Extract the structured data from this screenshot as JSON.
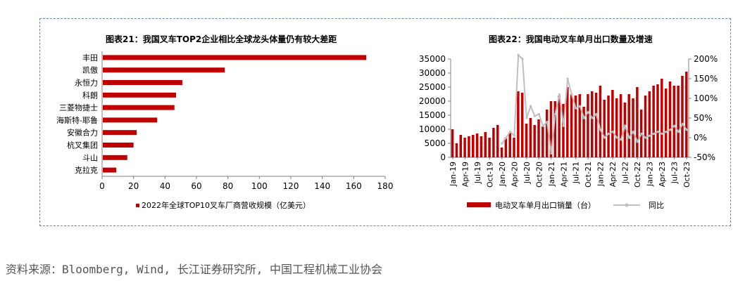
{
  "source_note": "资料来源：Bloomberg, Wind, 长江证券研究所, 中国工程机械工业协会",
  "colors": {
    "bar": "#c00000",
    "line": "#bfbfbf",
    "border": "#6a86b4"
  },
  "chart_data": [
    {
      "type": "bar",
      "orientation": "horizontal",
      "title": "图表21：我国叉车TOP2企业相比全球龙头体量仍有较大差距",
      "categories": [
        "丰田",
        "凯傲",
        "永恒力",
        "科朗",
        "三菱物捷士",
        "海斯特-耶鲁",
        "安徽合力",
        "杭叉集团",
        "斗山",
        "克拉克"
      ],
      "series": [
        {
          "name": "2022年全球TOP10叉车厂商营收规模（亿美元）",
          "values": [
            168,
            78,
            51,
            47,
            46,
            35,
            22,
            20,
            16,
            9
          ]
        }
      ],
      "xticks": [
        "0",
        "20",
        "40",
        "60",
        "80",
        "100",
        "120",
        "140",
        "160",
        "180"
      ],
      "xlim": [
        0,
        180
      ],
      "legend": "bottom"
    },
    {
      "type": "bar+line",
      "title": "图表22：我国电动叉车单月出口数量及增速",
      "xticks": [
        "Jan-19",
        "Apr-19",
        "Jul-19",
        "Oct-19",
        "Jan-20",
        "Apr-20",
        "Jul-20",
        "Oct-20",
        "Jan-21",
        "Apr-21",
        "Jul-21",
        "Oct-21",
        "Jan-22",
        "Apr-22",
        "Jul-22",
        "Oct-22",
        "Jan-23",
        "Apr-23",
        "Jul-23",
        "Oct-23"
      ],
      "y_left_ticks": [
        "0",
        "5000",
        "10000",
        "15000",
        "20000",
        "25000",
        "30000",
        "35000"
      ],
      "y_left_lim": [
        0,
        35000
      ],
      "y_right_ticks": [
        "-50%",
        "0%",
        "50%",
        "100%",
        "150%",
        "200%"
      ],
      "y_right_lim": [
        -50,
        200
      ],
      "series": [
        {
          "name": "电动叉车单月出口销量（台）",
          "kind": "bar",
          "axis": "left",
          "values": [
            10000,
            5000,
            8000,
            7000,
            7500,
            8000,
            8500,
            7500,
            9000,
            7000,
            10500,
            11500,
            3500,
            7000,
            9000,
            7000,
            23500,
            23000,
            12000,
            14000,
            11500,
            13500,
            11000,
            17000,
            20000,
            20000,
            22000,
            19000,
            25000,
            22500,
            22000,
            22500,
            18000,
            22500,
            23500,
            23000,
            25500,
            20500,
            22000,
            24000,
            21000,
            22500,
            19500,
            22500,
            21000,
            25000,
            17000,
            22000,
            23500,
            25500,
            26000,
            28000,
            24500,
            27000,
            25500,
            25500,
            29000,
            30500
          ]
        },
        {
          "name": "同比",
          "kind": "line",
          "axis": "right",
          "values": [
            null,
            null,
            null,
            null,
            null,
            null,
            null,
            null,
            null,
            null,
            null,
            null,
            -15,
            0,
            15,
            5,
            210,
            200,
            50,
            80,
            55,
            60,
            30,
            40,
            -40,
            60,
            110,
            30,
            150,
            110,
            75,
            80,
            50,
            65,
            50,
            60,
            20,
            0,
            10,
            15,
            0,
            -5,
            30,
            0,
            15,
            -10,
            10,
            0,
            5,
            10,
            15,
            10,
            15,
            20,
            30,
            15,
            35,
            20
          ]
        }
      ],
      "legend": "bottom"
    }
  ]
}
